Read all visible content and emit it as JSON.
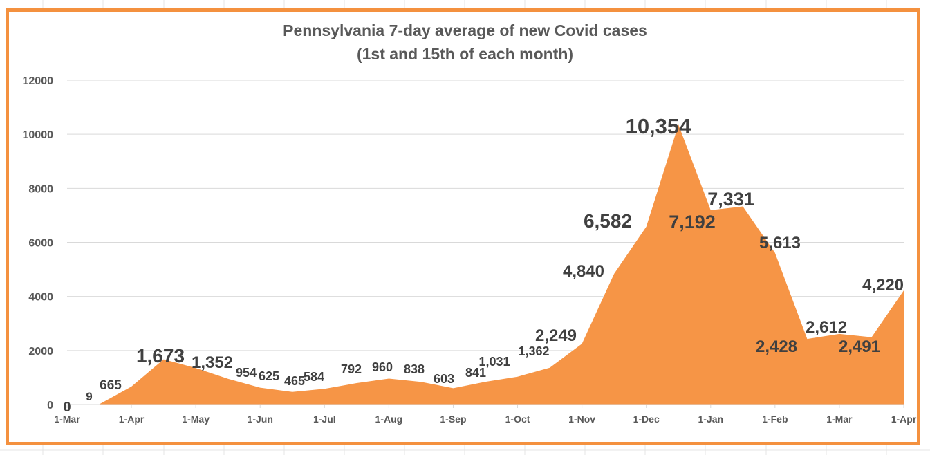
{
  "colors": {
    "area": "#f69546",
    "frame": "#f4913f",
    "grid": "#d9d9d9",
    "text": "#595959",
    "label": "#404040"
  },
  "chart_data": {
    "type": "area",
    "title": "Pennsylvania 7-day average of new Covid cases",
    "subtitle": "(1st and 15th of each month)",
    "xlabel": "",
    "ylabel": "",
    "ylim": [
      0,
      12000
    ],
    "yticks": [
      "0",
      "2000",
      "4000",
      "6000",
      "8000",
      "10000",
      "12000"
    ],
    "xtick_labels": [
      "1-Mar",
      "1-Apr",
      "1-May",
      "1-Jun",
      "1-Jul",
      "1-Aug",
      "1-Sep",
      "1-Oct",
      "1-Nov",
      "1-Dec",
      "1-Jan",
      "1-Feb",
      "1-Mar",
      "1-Apr"
    ],
    "grid": true,
    "legend": "none",
    "series": [
      {
        "name": "7-day average of new cases",
        "x": [
          "1-Mar",
          "15-Mar",
          "1-Apr",
          "15-Apr",
          "1-May",
          "15-May",
          "1-Jun",
          "15-Jun",
          "1-Jul",
          "15-Jul",
          "1-Aug",
          "15-Aug",
          "1-Sep",
          "15-Sep",
          "1-Oct",
          "15-Oct",
          "1-Nov",
          "15-Nov",
          "1-Dec",
          "15-Dec",
          "1-Jan",
          "15-Jan",
          "1-Feb",
          "15-Feb",
          "1-Mar",
          "15-Mar",
          "1-Apr"
        ],
        "values": [
          0,
          9,
          665,
          1673,
          1352,
          954,
          625,
          465,
          584,
          792,
          960,
          838,
          603,
          841,
          1031,
          1362,
          2249,
          4840,
          6582,
          10354,
          7192,
          7331,
          5613,
          2428,
          2612,
          2491,
          4220
        ],
        "labels": [
          "0",
          "9",
          "665",
          "1,673",
          "1,352",
          "954",
          "625",
          "465",
          "584",
          "792",
          "960",
          "838",
          "603",
          "841",
          "1,031",
          "1,362",
          "2,249",
          "4,840",
          "6,582",
          "10,354",
          "7,192",
          "7,331",
          "5,613",
          "2,428",
          "2,612",
          "2,491",
          "4,220"
        ]
      }
    ]
  }
}
